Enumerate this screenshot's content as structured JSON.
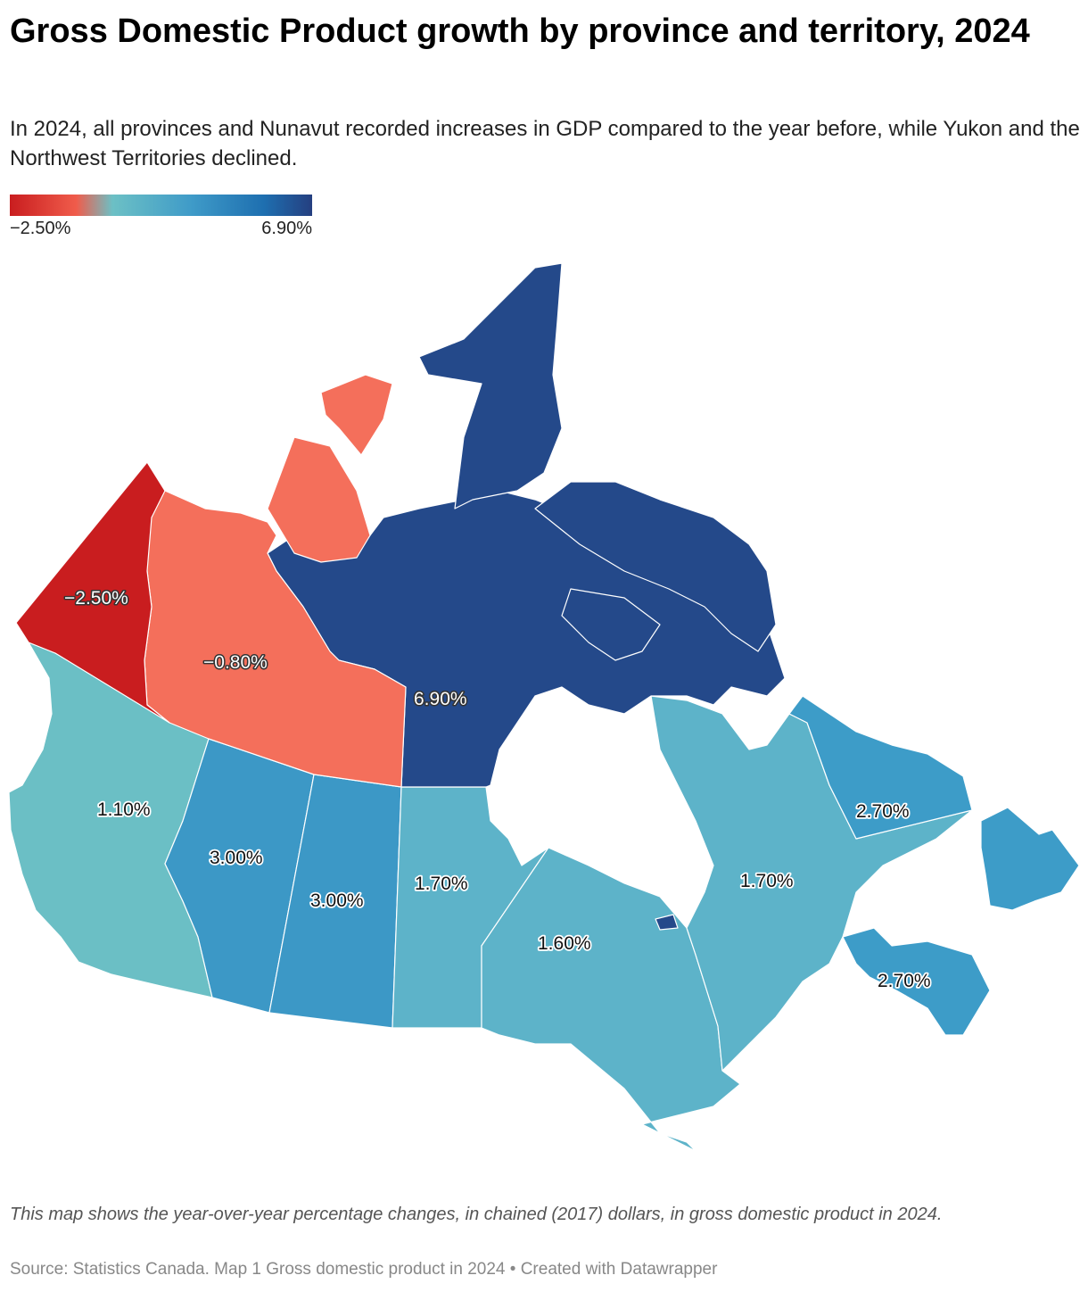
{
  "title": "Gross Domestic Product growth by province and territory, 2024",
  "subtitle": "In 2024, all provinces and Nunavut recorded increases in GDP compared to the year before, while Yukon and the Northwest Territories declined.",
  "legend": {
    "min_label": "−2.50%",
    "max_label": "6.90%",
    "min_value": -2.5,
    "max_value": 6.9,
    "colors": [
      "#c91d1f",
      "#f05c4b",
      "#6cc0c5",
      "#3f9bc8",
      "#1e6fb0",
      "#253f80"
    ]
  },
  "regions": [
    {
      "name": "Yukon",
      "value": -2.5,
      "label": "−2.50%",
      "color": "#c91d1f"
    },
    {
      "name": "Northwest Territories",
      "value": -0.8,
      "label": "−0.80%",
      "color": "#f46f5b"
    },
    {
      "name": "Nunavut",
      "value": 6.9,
      "label": "6.90%",
      "color": "#24498a"
    },
    {
      "name": "British Columbia",
      "value": 1.1,
      "label": "1.10%",
      "color": "#6bbfc5"
    },
    {
      "name": "Alberta",
      "value": 3.0,
      "label": "3.00%",
      "color": "#3c98c6"
    },
    {
      "name": "Saskatchewan",
      "value": 3.0,
      "label": "3.00%",
      "color": "#3c98c6"
    },
    {
      "name": "Manitoba",
      "value": 1.7,
      "label": "1.70%",
      "color": "#5db3c9"
    },
    {
      "name": "Ontario",
      "value": 1.6,
      "label": "1.60%",
      "color": "#5db3c9"
    },
    {
      "name": "Quebec",
      "value": 1.7,
      "label": "1.70%",
      "color": "#5db3c9"
    },
    {
      "name": "Newfoundland and Labrador",
      "value": 2.7,
      "label": "2.70%",
      "color": "#3d9cc8"
    },
    {
      "name": "Maritimes",
      "value": 2.7,
      "label": "2.70%",
      "color": "#3d9cc8"
    }
  ],
  "note": "This map shows the year-over-year percentage changes, in chained (2017) dollars, in gross domestic product in 2024.",
  "source": "Source: Statistics Canada. Map 1 Gross domestic product in 2024 • Created with Datawrapper"
}
